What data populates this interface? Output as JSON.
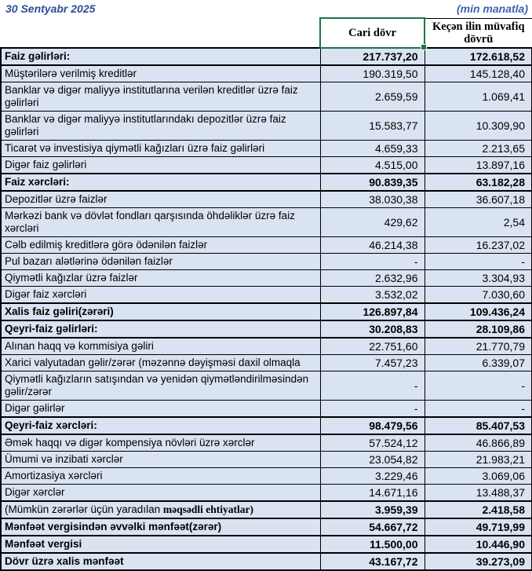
{
  "header": {
    "date": "30 Sentyabr 2025",
    "unit_note": "(min manatla)",
    "col_current": "Cari dövr",
    "col_previous": "Keçən ilin müvafiq dövrü"
  },
  "colors": {
    "row_background": "#dae3f1",
    "border": "#000000",
    "selection_green": "#1e7447",
    "date_blue": "#2d4f96",
    "note_blue": "#3a64ae"
  },
  "table": {
    "rows": [
      {
        "label": "Faiz gəlirləri:",
        "current": "217.737,20",
        "previous": "172.618,52",
        "bold": true,
        "thick": true
      },
      {
        "label": "Müştərilərə verilmiş kreditlər",
        "current": "190.319,50",
        "previous": "145.128,40"
      },
      {
        "label": "Banklar və digər maliyyə institutlarına verilən kreditlər üzrə faiz gəlirləri",
        "current": "2.659,59",
        "previous": "1.069,41"
      },
      {
        "label": "Banklar və digər maliyyə institutlarındakı depozitlər üzrə faiz gəlirləri",
        "current": "15.583,77",
        "previous": "10.309,90"
      },
      {
        "label": "Ticarət və investisiya qiymətli kağızları üzrə faiz gəlirləri",
        "current": "4.659,33",
        "previous": "2.213,65"
      },
      {
        "label": "Digər faiz gəlirləri",
        "current": "4.515,00",
        "previous": "13.897,16"
      },
      {
        "label": "Faiz xərcləri:",
        "current": "90.839,35",
        "previous": "63.182,28",
        "bold": true,
        "thick": true
      },
      {
        "label": "Depozitlər üzrə faizlər",
        "current": "38.030,38",
        "previous": "36.607,18"
      },
      {
        "label": "Mərkəzi bank və dövlət fondları qarşısında öhdəliklər üzrə faiz xərcləri",
        "current": "429,62",
        "previous": "2,54"
      },
      {
        "label": "Cəlb edilmiş kreditlərə görə ödənilən faizlər",
        "current": "46.214,38",
        "previous": "16.237,02"
      },
      {
        "label": "Pul bazarı alətlərinə ödənilən faizlər",
        "current": "-",
        "previous": "-"
      },
      {
        "label": "Qiymətli kağızlar üzrə faizlər",
        "current": "2.632,96",
        "previous": "3.304,93"
      },
      {
        "label": "Digər faiz xərcləri",
        "current": "3.532,02",
        "previous": "7.030,60"
      },
      {
        "label": "Xalis faiz gəliri(zərəri)",
        "current": "126.897,84",
        "previous": "109.436,24",
        "bold": true,
        "thick": true
      },
      {
        "label": "Qeyri-faiz gəlirləri:",
        "current": "30.208,83",
        "previous": "28.109,86",
        "bold": true,
        "thick": true
      },
      {
        "label": "Alınan haqq və kommisiya gəliri",
        "current": "22.751,60",
        "previous": "21.770,79"
      },
      {
        "label": "Xarici valyutadan gəlir/zərər (məzənnə dəyişməsi daxil olmaqla",
        "current": "7.457,23",
        "previous": "6.339,07"
      },
      {
        "label": "Qiymətli kağızların satışından və yenidən qiymətləndirilməsindən gəlir/zərər",
        "current": "-",
        "previous": "-"
      },
      {
        "label": "Digər gəlirlər",
        "current": "-",
        "previous": "-"
      },
      {
        "label": "Qeyri-faiz xərcləri:",
        "current": "98.479,56",
        "previous": "85.407,53",
        "bold": true,
        "thick": true
      },
      {
        "label": "Əmək haqqı və digər kompensiya növləri üzrə xərclər",
        "current": "57.524,12",
        "previous": "46.866,89"
      },
      {
        "label": "Ümumi və inzibati xərclər",
        "current": "23.054,82",
        "previous": "21.983,21"
      },
      {
        "label": "Amortizasiya xərcləri",
        "current": "3.229,46",
        "previous": "3.069,06"
      },
      {
        "label": "Digər xərclər",
        "current": "14.671,16",
        "previous": "13.488,37"
      },
      {
        "label": "(Mümkün zərərlər üçün yaradılan ",
        "label_bold_serif": "məqsədli ehtiyatlar)",
        "current": "3.959,39",
        "previous": "2.418,58",
        "values_bold": true,
        "thick": true
      },
      {
        "label": "Mənfəət vergisindən əvvəlki mənfəət(zərər)",
        "current": "54.667,72",
        "previous": "49.719,99",
        "bold": true,
        "thick": true
      },
      {
        "label": "Mənfəət vergisi",
        "current": "11.500,00",
        "previous": "10.446,90",
        "bold": true,
        "thick": true
      },
      {
        "label": "Dövr üzrə xalis mənfəət",
        "current": "43.167,72",
        "previous": "39.273,09",
        "bold": true,
        "thick": true
      }
    ]
  }
}
